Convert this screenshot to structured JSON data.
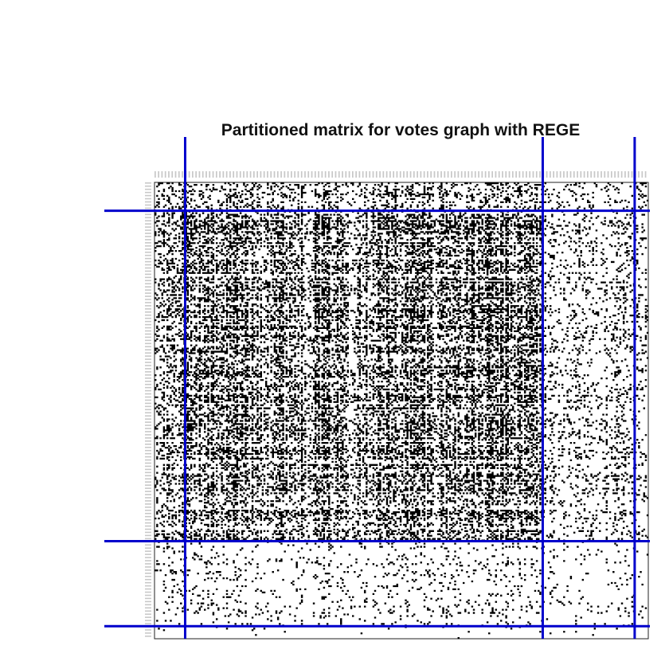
{
  "chart_data": {
    "type": "heatmap",
    "title": "Partitioned matrix for votes graph with REGE",
    "xlabel": "",
    "ylabel": "",
    "matrix": {
      "rows": 290,
      "cols": 290,
      "cell_color": "#000000",
      "empty_color": "#ffffff"
    },
    "partition": {
      "row_breaks": [
        18,
        228,
        282
      ],
      "col_breaks": [
        18,
        228,
        282
      ],
      "line_color": "#0000cc"
    },
    "blocks": [
      {
        "row_block": 1,
        "col_block": 1,
        "density": 0.22
      },
      {
        "row_block": 1,
        "col_block": 2,
        "density": 0.22
      },
      {
        "row_block": 1,
        "col_block": 3,
        "density": 0.1
      },
      {
        "row_block": 1,
        "col_block": 4,
        "density": 0.1
      },
      {
        "row_block": 2,
        "col_block": 1,
        "density": 0.25
      },
      {
        "row_block": 2,
        "col_block": 2,
        "density": 0.35
      },
      {
        "row_block": 2,
        "col_block": 3,
        "density": 0.12
      },
      {
        "row_block": 2,
        "col_block": 4,
        "density": 0.1
      },
      {
        "row_block": 3,
        "col_block": 1,
        "density": 0.07
      },
      {
        "row_block": 3,
        "col_block": 2,
        "density": 0.07
      },
      {
        "row_block": 3,
        "col_block": 3,
        "density": 0.04
      },
      {
        "row_block": 3,
        "col_block": 4,
        "density": 0.03
      },
      {
        "row_block": 4,
        "col_block": 1,
        "density": 0.01
      },
      {
        "row_block": 4,
        "col_block": 2,
        "density": 0.01
      },
      {
        "row_block": 4,
        "col_block": 3,
        "density": 0.01
      },
      {
        "row_block": 4,
        "col_block": 4,
        "density": 0.0
      }
    ],
    "tick_label_color": "#c8c8c8",
    "grid": false
  }
}
